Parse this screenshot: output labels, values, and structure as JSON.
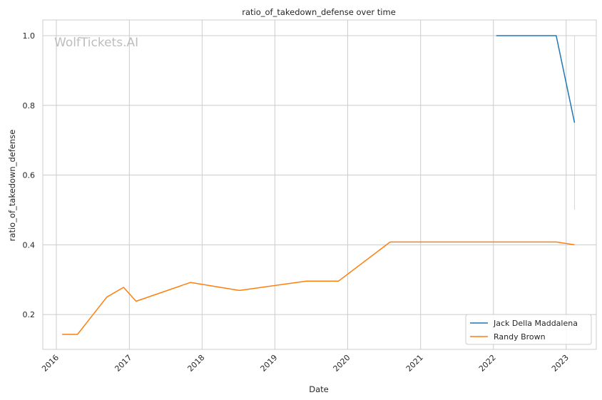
{
  "chart_data": {
    "type": "line",
    "title": "ratio_of_takedown_defense over time",
    "xlabel": "Date",
    "ylabel": "ratio_of_takedown_defense",
    "watermark": "WolfTickets.AI",
    "x_ticks": [
      "2016",
      "2017",
      "2018",
      "2019",
      "2020",
      "2021",
      "2022",
      "2023"
    ],
    "y_ticks": [
      "0.2",
      "0.4",
      "0.6",
      "0.8",
      "1.0"
    ],
    "xlim": [
      "2015-10-25",
      "2023-06-01"
    ],
    "ylim": [
      0.1,
      1.045
    ],
    "grid": true,
    "legend_position": "lower-right",
    "series": [
      {
        "name": "Jack Della Maddalena",
        "color": "#1f77b4",
        "points": [
          {
            "x": "2022-01-15",
            "y": 1.0
          },
          {
            "x": "2022-11-12",
            "y": 1.0
          },
          {
            "x": "2023-02-12",
            "y": 0.75
          }
        ]
      },
      {
        "name": "Randy Brown",
        "color": "#ff7f0e",
        "points": [
          {
            "x": "2016-01-30",
            "y": 0.143
          },
          {
            "x": "2016-04-16",
            "y": 0.143
          },
          {
            "x": "2016-09-10",
            "y": 0.25
          },
          {
            "x": "2016-12-03",
            "y": 0.278
          },
          {
            "x": "2017-02-04",
            "y": 0.238
          },
          {
            "x": "2017-11-04",
            "y": 0.292
          },
          {
            "x": "2018-07-07",
            "y": 0.269
          },
          {
            "x": "2019-06-08",
            "y": 0.296
          },
          {
            "x": "2019-11-16",
            "y": 0.296
          },
          {
            "x": "2020-08-01",
            "y": 0.408
          },
          {
            "x": "2022-11-12",
            "y": 0.408
          },
          {
            "x": "2023-02-12",
            "y": 0.4
          }
        ]
      }
    ],
    "faint_vertical_markers": [
      {
        "x": "2023-02-12",
        "y_from": 0.5,
        "y_to": 1.0,
        "color": "#b0c4de"
      }
    ]
  }
}
